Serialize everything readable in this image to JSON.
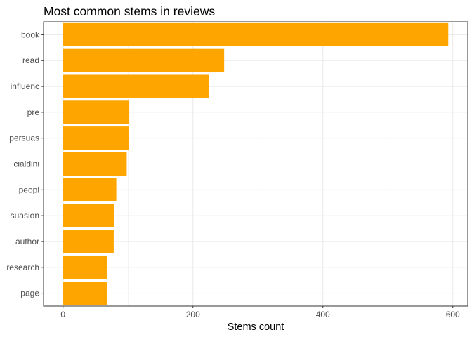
{
  "chart_data": {
    "type": "bar",
    "orientation": "horizontal",
    "title": "Most common stems in reviews",
    "xlabel": "Stems count",
    "ylabel": "",
    "categories": [
      "book",
      "read",
      "influenc",
      "pre",
      "persuas",
      "cialdini",
      "peopl",
      "suasion",
      "author",
      "research",
      "page"
    ],
    "values": [
      593,
      248,
      225,
      102,
      101,
      98,
      82,
      79,
      78,
      68,
      68
    ],
    "xlim": [
      -30,
      623
    ],
    "x_ticks": [
      0,
      200,
      400,
      600
    ],
    "grid": true,
    "legend": "none",
    "bar_color": "#FFA500"
  }
}
